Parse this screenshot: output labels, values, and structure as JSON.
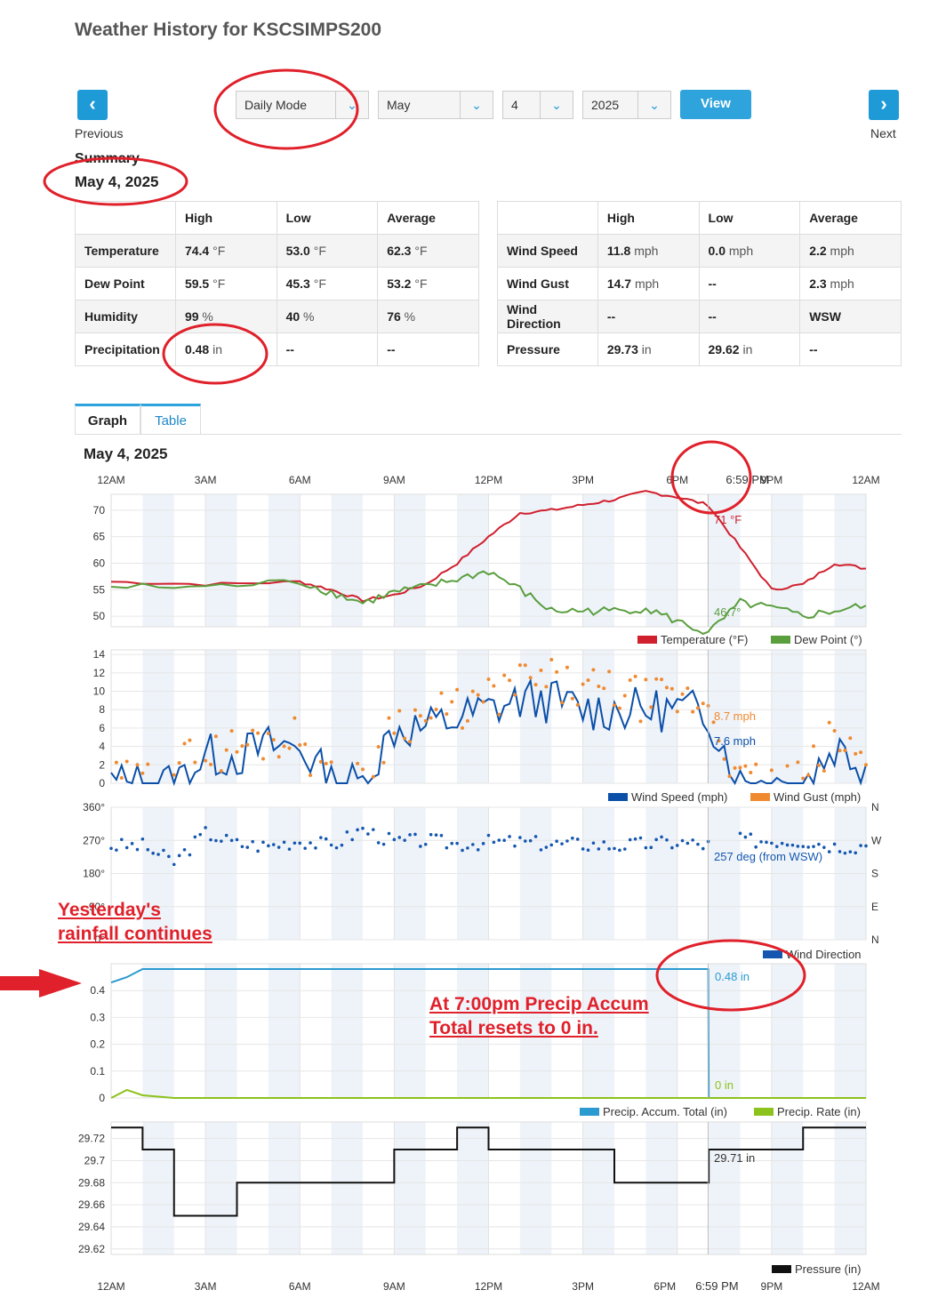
{
  "page": {
    "title": "Weather History for KSCSIMPS200"
  },
  "nav": {
    "prev_label": "Previous",
    "next_label": "Next",
    "prev_icon": "chevron-left-icon",
    "next_icon": "chevron-right-icon"
  },
  "controls": {
    "mode": "Daily Mode",
    "month": "May",
    "day": "4",
    "year": "2025",
    "view_label": "View"
  },
  "summary": {
    "heading": "Summary",
    "date": "May 4, 2025",
    "left_headers": [
      "",
      "High",
      "Low",
      "Average"
    ],
    "left_rows": [
      {
        "label": "Temperature",
        "high": "74.4",
        "high_u": "°F",
        "low": "53.0",
        "low_u": "°F",
        "avg": "62.3",
        "avg_u": "°F"
      },
      {
        "label": "Dew Point",
        "high": "59.5",
        "high_u": "°F",
        "low": "45.3",
        "low_u": "°F",
        "avg": "53.2",
        "avg_u": "°F"
      },
      {
        "label": "Humidity",
        "high": "99",
        "high_u": "%",
        "low": "40",
        "low_u": "%",
        "avg": "76",
        "avg_u": "%"
      },
      {
        "label": "Precipitation",
        "high": "0.48",
        "high_u": "in",
        "low": "--",
        "low_u": "",
        "avg": "--",
        "avg_u": ""
      }
    ],
    "right_headers": [
      "",
      "High",
      "Low",
      "Average"
    ],
    "right_rows": [
      {
        "label": "Wind Speed",
        "high": "11.8",
        "high_u": "mph",
        "low": "0.0",
        "low_u": "mph",
        "avg": "2.2",
        "avg_u": "mph"
      },
      {
        "label": "Wind Gust",
        "high": "14.7",
        "high_u": "mph",
        "low": "--",
        "low_u": "",
        "avg": "2.3",
        "avg_u": "mph"
      },
      {
        "label": "Wind Direction",
        "high": "--",
        "high_u": "",
        "low": "--",
        "low_u": "",
        "avg": "WSW",
        "avg_u": ""
      },
      {
        "label": "Pressure",
        "high": "29.73",
        "high_u": "in",
        "low": "29.62",
        "low_u": "in",
        "avg": "--",
        "avg_u": ""
      }
    ]
  },
  "tabs": {
    "graph": "Graph",
    "table": "Table"
  },
  "graph": {
    "date": "May 4, 2025",
    "time_ticks": [
      "12AM",
      "3AM",
      "6AM",
      "9AM",
      "12PM",
      "3PM",
      "6PM",
      "9PM",
      "12AM"
    ],
    "cursor_time": "6:59 PM",
    "temp_axis": [
      "70",
      "65",
      "60",
      "55",
      "50"
    ],
    "temp_tooltip": "71 °F",
    "dew_tooltip": "46.7°",
    "temp_legend": "Temperature (°F)",
    "dew_legend": "Dew Point (°)",
    "wind_axis": [
      "14",
      "12",
      "10",
      "8",
      "6",
      "4",
      "2",
      "0"
    ],
    "gust_tooltip": "8.7 mph",
    "speed_tooltip": "7.6 mph",
    "speed_legend": "Wind Speed (mph)",
    "gust_legend": "Wind Gust (mph)",
    "dir_axis": [
      "360°",
      "270°",
      "180°",
      "90°",
      "0°"
    ],
    "dir_axis_right": [
      "N",
      "W",
      "S",
      "E",
      "N"
    ],
    "dir_tooltip": "257 deg (from WSW)",
    "dir_legend": "Wind Direction",
    "precip_axis": [
      "0.4",
      "0.3",
      "0.2",
      "0.1",
      "0"
    ],
    "accum_tooltip": "0.48 in",
    "rate_tooltip": "0 in",
    "accum_legend": "Precip. Accum. Total (in)",
    "rate_legend": "Precip. Rate (in)",
    "pressure_axis": [
      "29.72",
      "29.7",
      "29.68",
      "29.66",
      "29.64",
      "29.62"
    ],
    "pressure_tooltip": "29.71 in",
    "pressure_legend": "Pressure (in)",
    "colors": {
      "temp": "#d0202e",
      "dew": "#5a9e3e",
      "speed": "#0b4fa8",
      "gust": "#f08a30",
      "dir": "#1557b0",
      "accum": "#2b9ad0",
      "rate": "#8cc21c",
      "pressure": "#111111",
      "band": "#eef3f9"
    }
  },
  "annotations": {
    "yesterday_line1": "Yesterday's",
    "yesterday_line2": "rainfall continues",
    "reset_line1": "At 7:00pm Precip Accum",
    "reset_line2": "Total resets to 0 in."
  },
  "chart_data": [
    {
      "type": "line",
      "title": "",
      "x_range": [
        "12AM",
        "12AM"
      ],
      "series": [
        {
          "name": "Temperature (°F)",
          "x": [
            "12AM",
            "3AM",
            "6AM",
            "7AM",
            "8AM",
            "9AM",
            "10AM",
            "11AM",
            "12PM",
            "1PM",
            "2PM",
            "3PM",
            "4PM",
            "5PM",
            "6PM",
            "6:59PM",
            "8PM",
            "9PM",
            "10PM",
            "11PM",
            "12AM"
          ],
          "values": [
            56.5,
            56,
            56.5,
            55,
            53,
            54,
            56,
            60,
            65,
            69.5,
            70,
            71,
            72,
            73.5,
            72.5,
            71,
            63,
            55,
            56,
            60,
            59
          ]
        },
        {
          "name": "Dew Point (°)",
          "x": [
            "12AM",
            "3AM",
            "6AM",
            "7AM",
            "8AM",
            "9AM",
            "10AM",
            "11AM",
            "12PM",
            "1PM",
            "2PM",
            "3PM",
            "4PM",
            "5PM",
            "6PM",
            "6:59PM",
            "8PM",
            "9PM",
            "10PM",
            "11PM",
            "12AM"
          ],
          "values": [
            55.5,
            55.5,
            56.5,
            54.5,
            52.5,
            54.5,
            55.5,
            57,
            58.5,
            55,
            51,
            51,
            51,
            51.5,
            49,
            46.7,
            52.5,
            51.5,
            50,
            51,
            52
          ]
        }
      ],
      "ylim": [
        48,
        73
      ]
    },
    {
      "type": "line",
      "title": "",
      "series": [
        {
          "name": "Wind Speed (mph)",
          "x": [
            "12AM",
            "1AM",
            "2AM",
            "3AM",
            "4AM",
            "5AM",
            "6AM",
            "7AM",
            "8AM",
            "9AM",
            "10AM",
            "11AM",
            "12PM",
            "1PM",
            "2PM",
            "3PM",
            "4PM",
            "5PM",
            "6PM",
            "6:59PM",
            "8PM",
            "9PM",
            "10PM",
            "11PM",
            "12AM"
          ],
          "values": [
            0,
            0,
            0,
            3,
            3,
            4,
            4,
            0,
            0,
            6,
            6,
            7,
            8,
            9,
            9,
            8,
            8,
            8,
            8,
            7.6,
            0,
            0,
            0,
            4,
            2
          ]
        },
        {
          "name": "Wind Gust (mph)",
          "x": [
            "12AM",
            "1AM",
            "2AM",
            "3AM",
            "4AM",
            "5AM",
            "6AM",
            "7AM",
            "8AM",
            "9AM",
            "10AM",
            "11AM",
            "12PM",
            "1PM",
            "2PM",
            "3PM",
            "4PM",
            "5PM",
            "6PM",
            "6:59PM",
            "8PM",
            "9PM",
            "10PM",
            "11PM",
            "12AM"
          ],
          "values": [
            0,
            0,
            2,
            3,
            4,
            5,
            5,
            0,
            0,
            7,
            7,
            8,
            9,
            11,
            11,
            10,
            10,
            9,
            9,
            8.7,
            0,
            0,
            0,
            5,
            2
          ]
        }
      ],
      "ylim": [
        0,
        14.5
      ]
    },
    {
      "type": "scatter",
      "title": "",
      "series": [
        {
          "name": "Wind Direction",
          "x": [
            "12AM",
            "1AM",
            "2AM",
            "3AM",
            "4AM",
            "5AM",
            "6AM",
            "7AM",
            "8AM",
            "9AM",
            "10AM",
            "11AM",
            "12PM",
            "1PM",
            "2PM",
            "3PM",
            "4PM",
            "5PM",
            "6PM",
            "6:59PM",
            "8PM",
            "9PM",
            "10PM",
            "11PM",
            "12AM"
          ],
          "values": [
            255,
            255,
            210,
            290,
            260,
            255,
            270,
            255,
            300,
            265,
            270,
            260,
            265,
            265,
            260,
            260,
            255,
            260,
            265,
            257,
            270,
            270,
            270,
            255,
            255
          ]
        }
      ],
      "ylim": [
        0,
        360
      ]
    },
    {
      "type": "line",
      "title": "",
      "series": [
        {
          "name": "Precip. Accum. Total (in)",
          "x": [
            "12AM",
            "12:30AM",
            "1AM",
            "2AM",
            "6PM",
            "6:59PM",
            "7PM",
            "12AM"
          ],
          "values": [
            0.43,
            0.45,
            0.48,
            0.48,
            0.48,
            0.48,
            0,
            0
          ]
        },
        {
          "name": "Precip. Rate (in)",
          "x": [
            "12AM",
            "12:30AM",
            "1AM",
            "2AM",
            "6PM",
            "7PM",
            "12AM"
          ],
          "values": [
            0,
            0.03,
            0.01,
            0,
            0,
            0,
            0
          ]
        }
      ],
      "ylim": [
        0,
        0.5
      ]
    },
    {
      "type": "line",
      "title": "",
      "series": [
        {
          "name": "Pressure (in)",
          "x": [
            "12AM",
            "1AM",
            "2AM",
            "3AM",
            "4AM",
            "6AM",
            "8AM",
            "9AM",
            "11AM",
            "12PM",
            "1PM",
            "3PM",
            "4PM",
            "6PM",
            "7PM",
            "9PM",
            "10PM",
            "12AM"
          ],
          "values": [
            29.73,
            29.71,
            29.65,
            29.65,
            29.68,
            29.68,
            29.68,
            29.71,
            29.73,
            29.71,
            29.71,
            29.71,
            29.68,
            29.68,
            29.71,
            29.71,
            29.73,
            29.73
          ]
        }
      ],
      "ylim": [
        29.615,
        29.735
      ]
    }
  ]
}
